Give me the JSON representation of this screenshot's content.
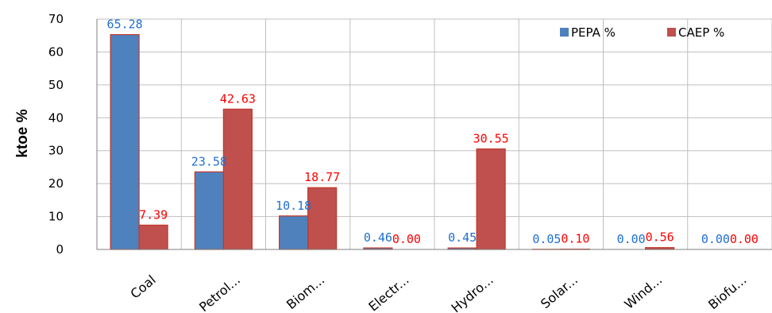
{
  "chart_data": {
    "type": "bar",
    "title": "",
    "xlabel": "",
    "ylabel": "ktoe %",
    "ylim": [
      0,
      70
    ],
    "yticks": [
      0,
      10,
      20,
      30,
      40,
      50,
      60,
      70
    ],
    "grid": true,
    "legend_position": "top-right",
    "categories": [
      "Coal",
      "Petrol...",
      "Biom...",
      "Electr...",
      "Hydro...",
      "Solar...",
      "Wind...",
      "Biofu..."
    ],
    "series": [
      {
        "name": "PEPA %",
        "color": "#4f81bd",
        "label_color": "#1f6fd0",
        "values": [
          65.28,
          23.58,
          10.18,
          0.46,
          0.45,
          0.05,
          0.0,
          0.0
        ],
        "labels": [
          "65.28",
          "23.58",
          "10.18",
          "0.46",
          "0.45",
          "0.05",
          "0.00",
          "0.00"
        ]
      },
      {
        "name": "CAEP %",
        "color": "#c0504d",
        "label_color": "#ff0000",
        "values": [
          7.39,
          42.63,
          18.77,
          0.0,
          30.55,
          0.1,
          0.56,
          0.0
        ],
        "labels": [
          "7.39",
          "42.63",
          "18.77",
          "0.00",
          "30.55",
          "0.10",
          "0.56",
          "0.00"
        ]
      }
    ]
  }
}
